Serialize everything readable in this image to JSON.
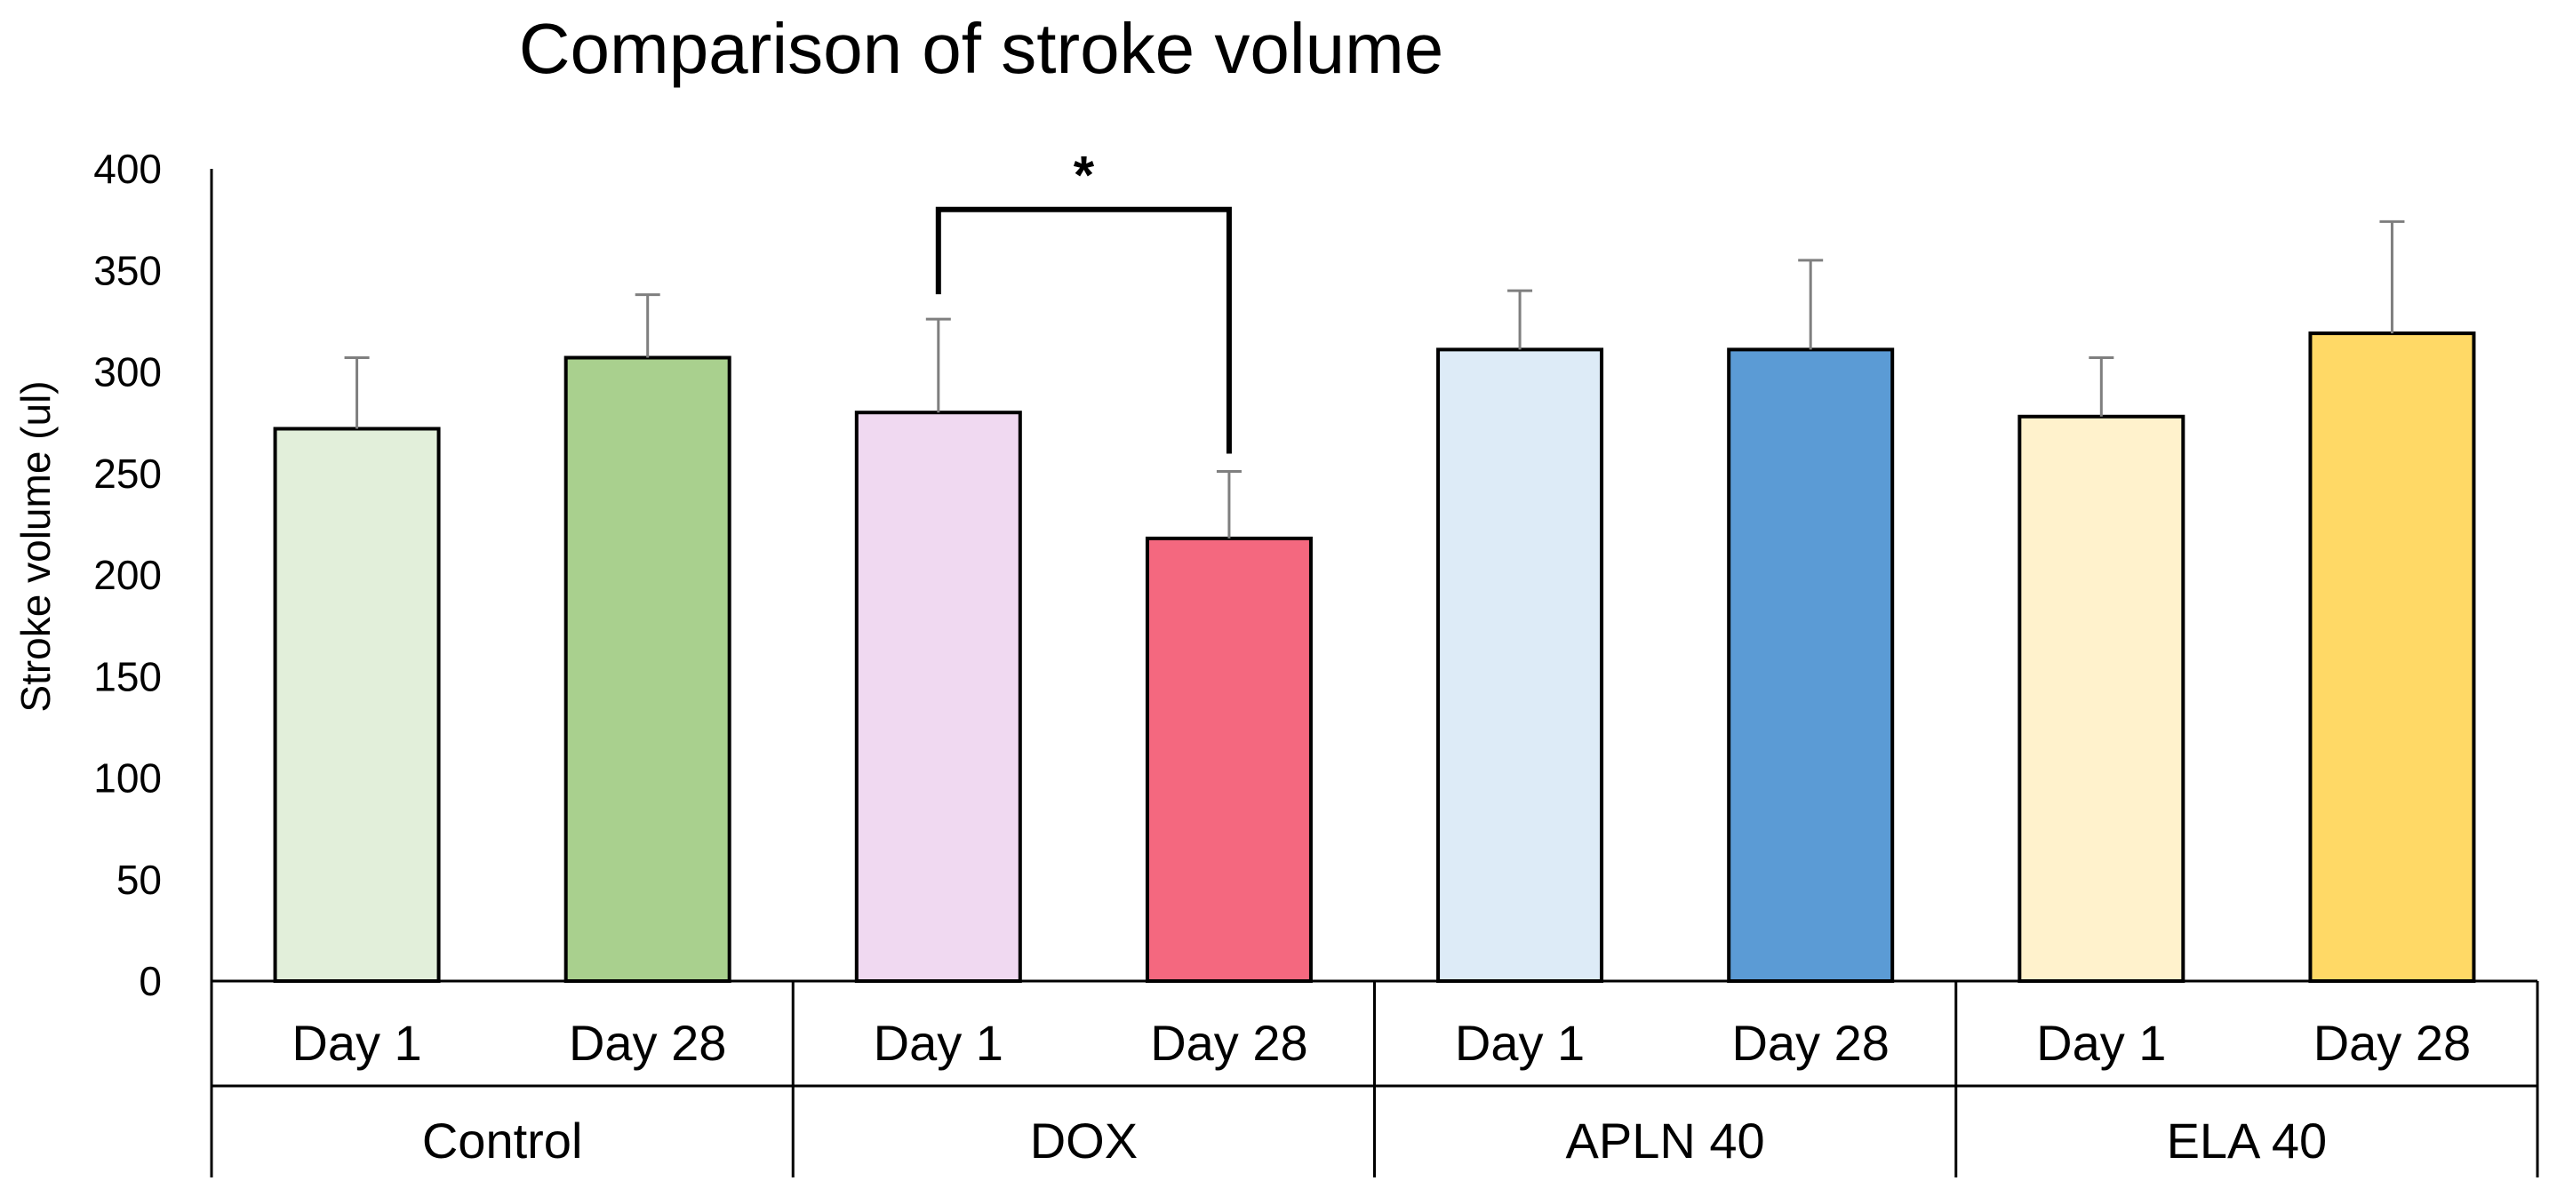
{
  "chart_data": {
    "type": "bar",
    "title": "Comparison of stroke volume",
    "ylabel": "Stroke volume (ul)",
    "xlabel": "",
    "ylim": [
      0,
      400
    ],
    "yticks": [
      0,
      50,
      100,
      150,
      200,
      250,
      300,
      350,
      400
    ],
    "groups": [
      "Control",
      "DOX",
      "APLN 40",
      "ELA 40"
    ],
    "categories": [
      "Day 1",
      "Day 28",
      "Day 1",
      "Day 28",
      "Day 1",
      "Day 28",
      "Day 1",
      "Day 28"
    ],
    "values": [
      272,
      307,
      280,
      218,
      311,
      311,
      278,
      319
    ],
    "errors": [
      35,
      31,
      46,
      33,
      29,
      44,
      29,
      55
    ],
    "colors": [
      "#e2efda",
      "#a9d08e",
      "#f0d9f1",
      "#f4687f",
      "#ddebf7",
      "#5b9bd5",
      "#fff2cc",
      "#ffd966"
    ],
    "grid": false,
    "significance": {
      "label": "*",
      "between": [
        2,
        3
      ]
    }
  }
}
